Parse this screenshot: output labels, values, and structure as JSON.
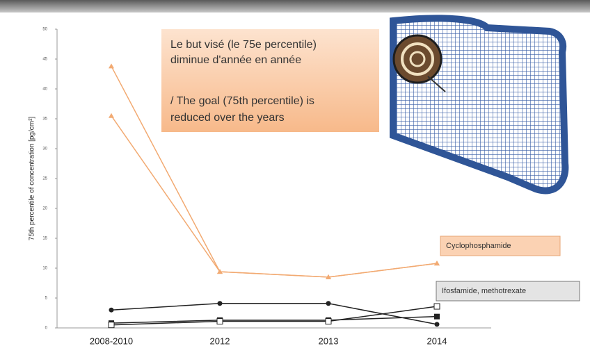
{
  "chart_data": {
    "type": "line",
    "y_label": "75th percentile of concentration [pg/cm²]",
    "categories": [
      "2008-2010",
      "2012",
      "2013",
      "2014"
    ],
    "series": [
      {
        "color": "#f2aa72",
        "marker": "triangle",
        "values": [
          43.8,
          9.4,
          8.5,
          10.8
        ]
      },
      {
        "color": "#f2aa72",
        "marker": "triangle",
        "values": [
          35.5,
          9.4,
          8.5,
          10.8
        ]
      },
      {
        "color": "#222222",
        "marker": "circle",
        "values": [
          3.0,
          4.1,
          4.1,
          0.6
        ]
      },
      {
        "color": "#222222",
        "marker": "square",
        "values": [
          0.8,
          1.3,
          1.3,
          1.9
        ]
      },
      {
        "color": "#222222",
        "marker": "square-open",
        "values": [
          0.5,
          1.1,
          1.1,
          3.6
        ]
      }
    ],
    "ylim": [
      0,
      50
    ],
    "yticks": [
      0,
      5,
      10,
      15,
      20,
      25,
      30,
      35,
      40,
      45,
      50
    ],
    "callout": {
      "line1": "Le but visé (le 75e percentile)",
      "line2": "diminue d'année en année",
      "line3": "/ The goal (75th percentile) is",
      "line4": "reduced over the years"
    },
    "annotations": [
      "Cyclophosphamide",
      "Ifosfamide, methotrexate"
    ]
  }
}
